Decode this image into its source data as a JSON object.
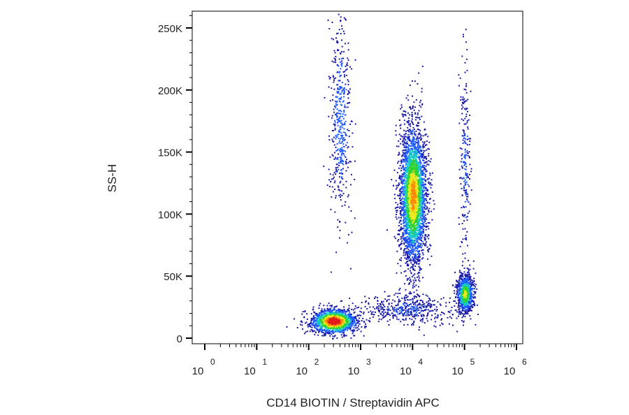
{
  "chart_data": {
    "type": "scatter",
    "subtype": "flow-cytometry-density-dot-plot",
    "xlabel": "CD14 BIOTIN / Streptavidin APC",
    "ylabel": "SS-H",
    "xscale": "log",
    "xlim": [
      1,
      1000000
    ],
    "ylim": [
      0,
      262144
    ],
    "yticks": [
      {
        "value": 0,
        "label": "0"
      },
      {
        "value": 50000,
        "label": "50K"
      },
      {
        "value": 100000,
        "label": "100K"
      },
      {
        "value": 150000,
        "label": "150K"
      },
      {
        "value": 200000,
        "label": "200K"
      },
      {
        "value": 250000,
        "label": "250K"
      }
    ],
    "xticks": [
      {
        "value": 1,
        "base": "10",
        "exp": "0"
      },
      {
        "value": 10,
        "base": "10",
        "exp": "1"
      },
      {
        "value": 100,
        "base": "10",
        "exp": "2"
      },
      {
        "value": 1000,
        "base": "10",
        "exp": "3"
      },
      {
        "value": 10000,
        "base": "10",
        "exp": "4"
      },
      {
        "value": 100000,
        "base": "10",
        "exp": "5"
      },
      {
        "value": 1000000,
        "base": "10",
        "exp": "6"
      }
    ],
    "grid": false,
    "legend": "none",
    "colormap": [
      "#1a1aa6",
      "#1f5cff",
      "#16c8c8",
      "#2fd22f",
      "#e8e820",
      "#ff8a00",
      "#e31a1c"
    ],
    "populations": [
      {
        "x_center": 300,
        "y_center": 14000,
        "x_spread_decades": 0.22,
        "y_spread": 5000,
        "count": 1500,
        "peak_density": 1.0
      },
      {
        "x_center": 400,
        "y_center": 175000,
        "x_spread_decades": 0.1,
        "y_spread": 40000,
        "count": 450,
        "peak_density": 0.2
      },
      {
        "x_center": 10000,
        "y_center": 115000,
        "x_spread_decades": 0.13,
        "y_spread": 28000,
        "count": 3200,
        "peak_density": 0.75
      },
      {
        "x_center": 100000,
        "y_center": 140000,
        "x_spread_decades": 0.05,
        "y_spread": 42000,
        "count": 220,
        "peak_density": 0.15
      },
      {
        "x_center": 100000,
        "y_center": 36000,
        "x_spread_decades": 0.08,
        "y_spread": 8000,
        "count": 900,
        "peak_density": 0.6
      },
      {
        "x_center": 8000,
        "y_center": 24000,
        "x_spread_decades": 0.45,
        "y_spread": 6000,
        "count": 450,
        "peak_density": 0.12
      }
    ]
  }
}
